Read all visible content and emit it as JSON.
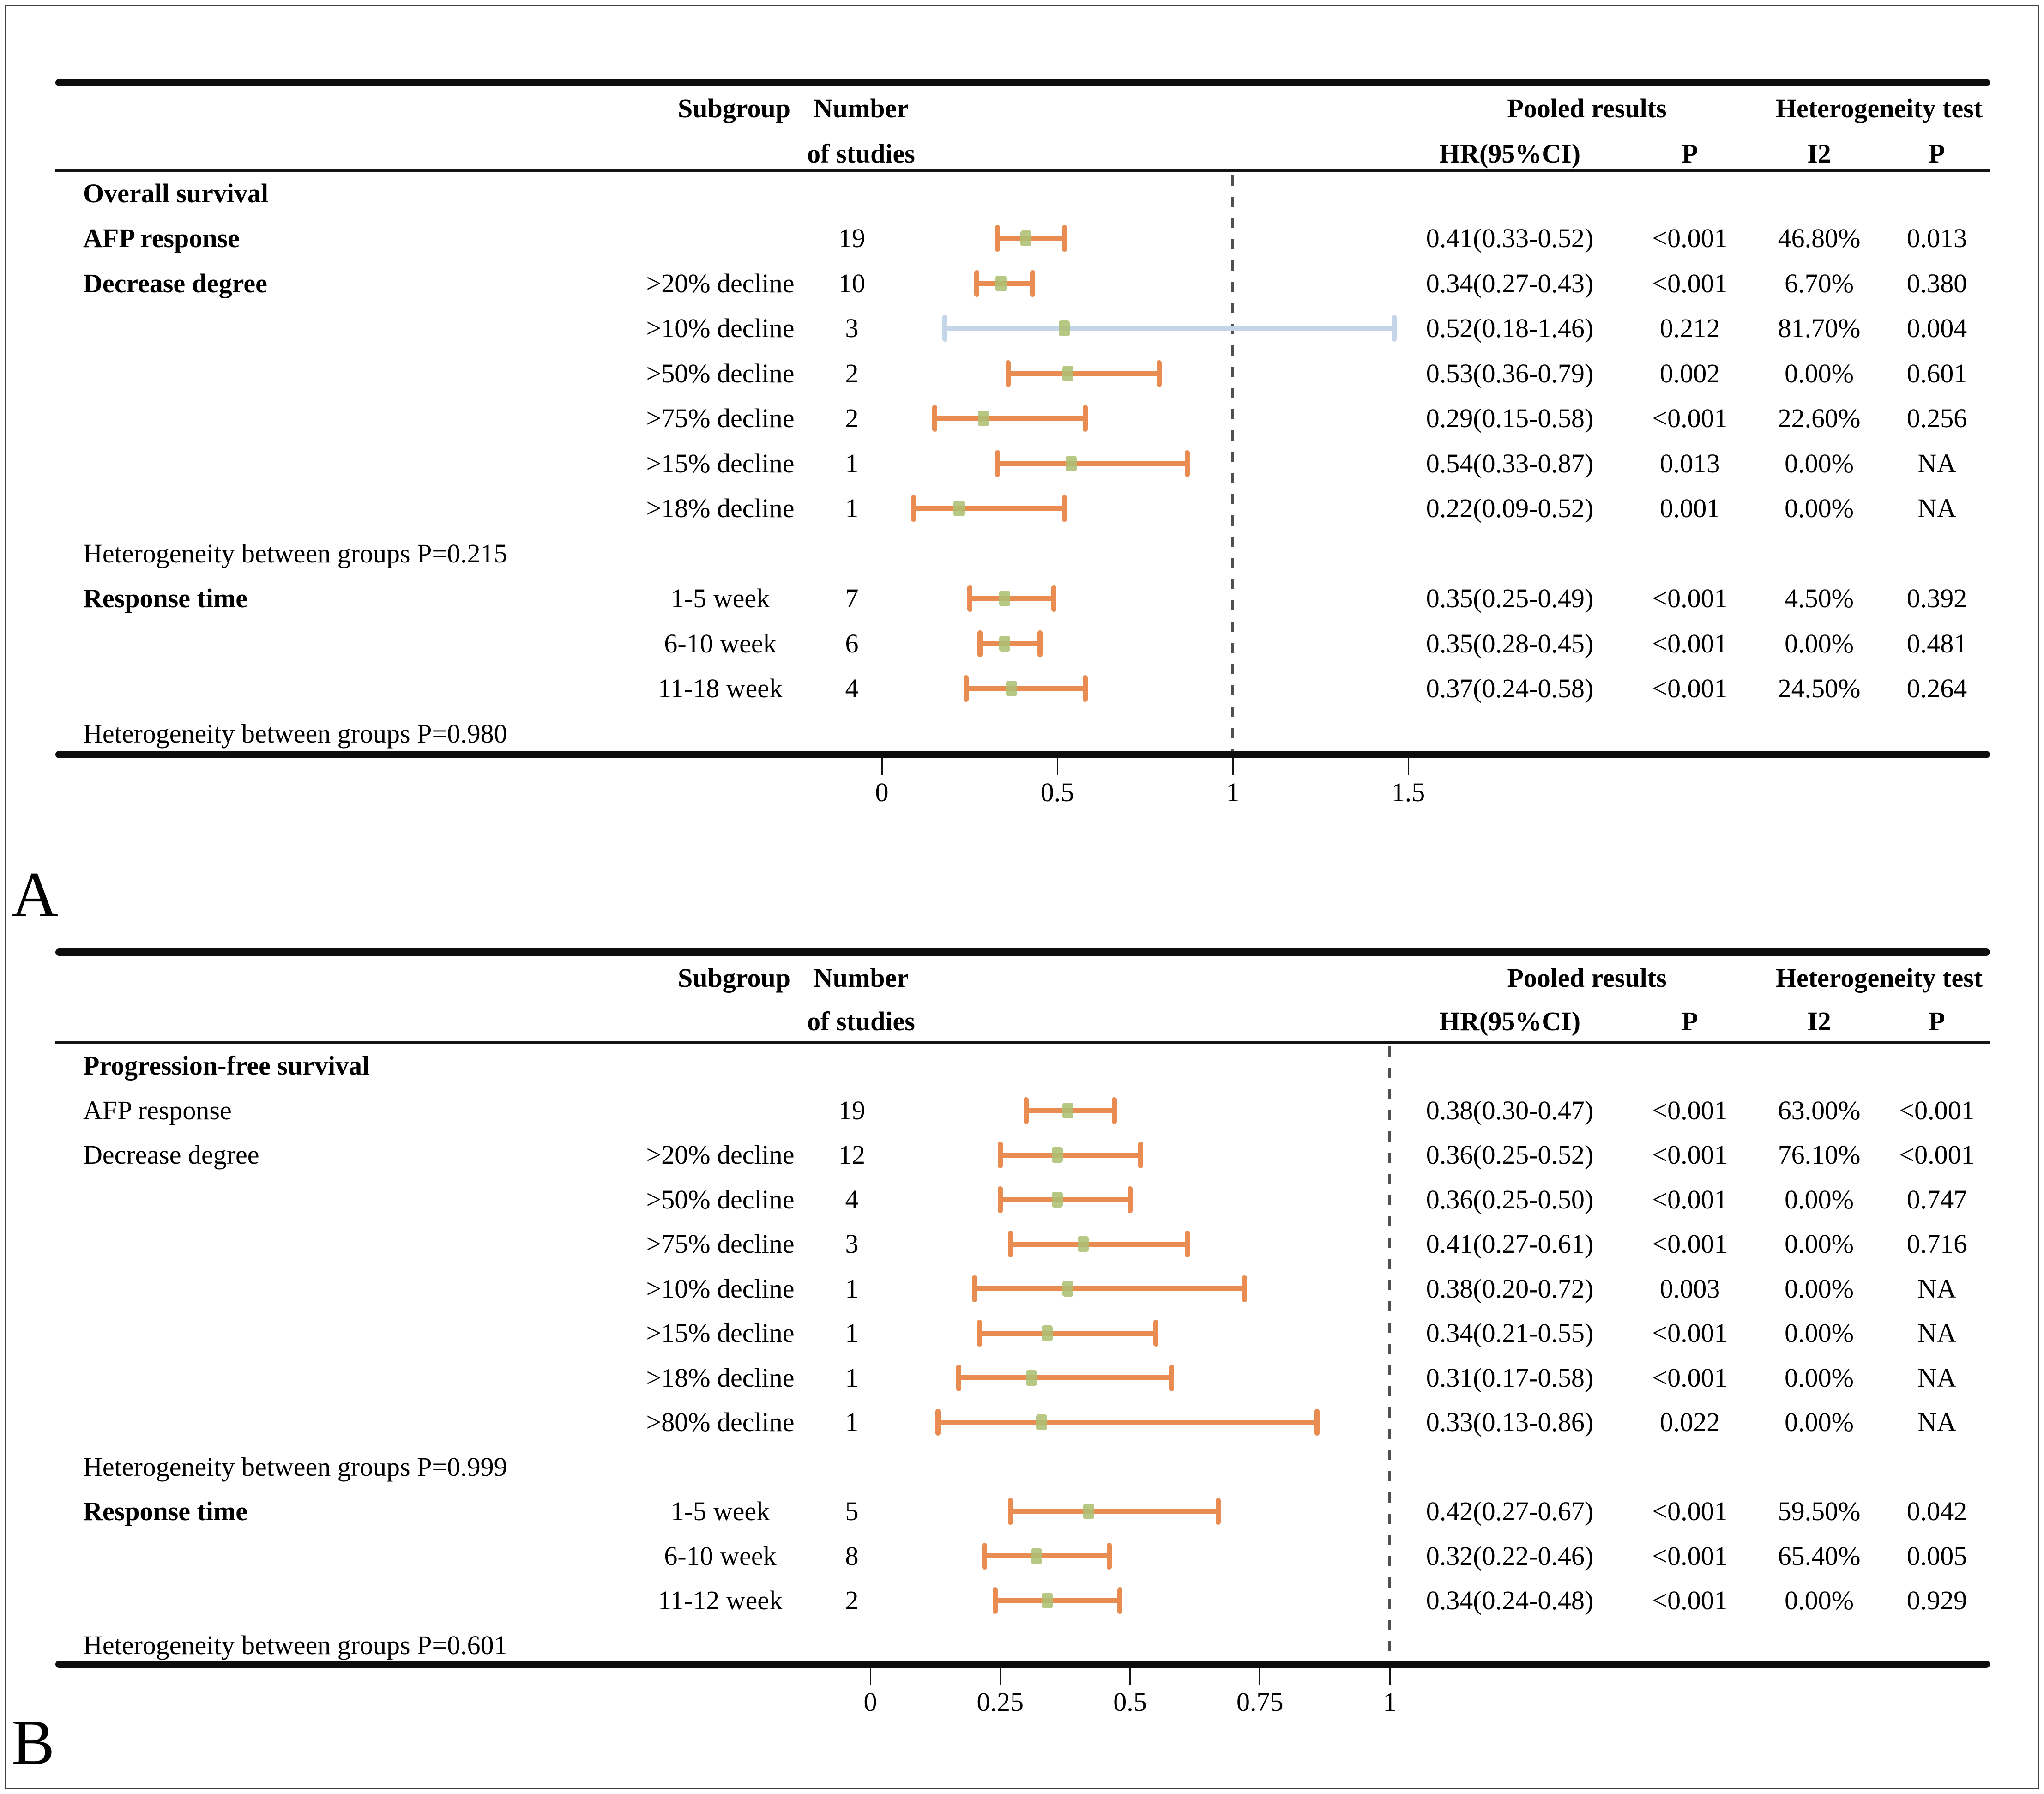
{
  "figure": {
    "panel_a_letter": "A",
    "panel_b_letter": "B",
    "colors": {
      "ci_orange": "#E88C52",
      "ci_blue": "#C5D5E8",
      "marker_green": "rgba(173,191,115,0.88)",
      "reference_dash": "#4f4f4f",
      "rule_black": "#0d0d0d"
    }
  },
  "chart_data": {
    "type": "forest",
    "panels": [
      {
        "label": "A",
        "group_title": "Overall survival",
        "columns": {
          "subgroup": "Subgroup",
          "number_line1": "Number",
          "number_line2": "of studies",
          "pooled": "Pooled results",
          "heterogeneity": "Heterogeneity test",
          "hr": "HR(95%CI)",
          "p_pooled": "P",
          "i2": "I2",
          "p_het": "P"
        },
        "axis": {
          "min": 0,
          "max": 1.5,
          "ticks": [
            "0",
            "0.5",
            "1",
            "1.5"
          ],
          "tick_values": [
            0,
            0.5,
            1,
            1.5
          ],
          "reference_value": 1
        },
        "rows": [
          {
            "type": "section",
            "label": "Overall survival",
            "bold": true
          },
          {
            "type": "data",
            "label": "AFP response",
            "bold": true,
            "subgroup": "",
            "n": "19",
            "hr": 0.41,
            "lo": 0.33,
            "hi": 0.52,
            "hr_text": "0.41(0.33-0.52)",
            "p": "<0.001",
            "i2": "46.80%",
            "p_het": "0.013",
            "ci_color": "orange"
          },
          {
            "type": "data",
            "label": "Decrease degree",
            "bold": true,
            "subgroup": ">20% decline",
            "n": "10",
            "hr": 0.34,
            "lo": 0.27,
            "hi": 0.43,
            "hr_text": "0.34(0.27-0.43)",
            "p": "<0.001",
            "i2": "6.70%",
            "p_het": "0.380",
            "ci_color": "orange"
          },
          {
            "type": "data",
            "subgroup": ">10% decline",
            "n": "3",
            "hr": 0.52,
            "lo": 0.18,
            "hi": 1.46,
            "hr_text": "0.52(0.18-1.46)",
            "p": "0.212",
            "i2": "81.70%",
            "p_het": "0.004",
            "ci_color": "blue"
          },
          {
            "type": "data",
            "subgroup": ">50% decline",
            "n": "2",
            "hr": 0.53,
            "lo": 0.36,
            "hi": 0.79,
            "hr_text": "0.53(0.36-0.79)",
            "p": "0.002",
            "i2": "0.00%",
            "p_het": "0.601",
            "ci_color": "orange"
          },
          {
            "type": "data",
            "subgroup": ">75% decline",
            "n": "2",
            "hr": 0.29,
            "lo": 0.15,
            "hi": 0.58,
            "hr_text": "0.29(0.15-0.58)",
            "p": "<0.001",
            "i2": "22.60%",
            "p_het": "0.256",
            "ci_color": "orange"
          },
          {
            "type": "data",
            "subgroup": ">15% decline",
            "n": "1",
            "hr": 0.54,
            "lo": 0.33,
            "hi": 0.87,
            "hr_text": "0.54(0.33-0.87)",
            "p": "0.013",
            "i2": "0.00%",
            "p_het": "NA",
            "ci_color": "orange"
          },
          {
            "type": "data",
            "subgroup": ">18% decline",
            "n": "1",
            "hr": 0.22,
            "lo": 0.09,
            "hi": 0.52,
            "hr_text": "0.22(0.09-0.52)",
            "p": "0.001",
            "i2": "0.00%",
            "p_het": "NA",
            "ci_color": "orange"
          },
          {
            "type": "note",
            "label": "Heterogeneity between groups P=0.215"
          },
          {
            "type": "data",
            "label": "Response time",
            "bold": true,
            "subgroup": "1-5 week",
            "n": "7",
            "hr": 0.35,
            "lo": 0.25,
            "hi": 0.49,
            "hr_text": "0.35(0.25-0.49)",
            "p": "<0.001",
            "i2": "4.50%",
            "p_het": "0.392",
            "ci_color": "orange"
          },
          {
            "type": "data",
            "subgroup": "6-10 week",
            "n": "6",
            "hr": 0.35,
            "lo": 0.28,
            "hi": 0.45,
            "hr_text": "0.35(0.28-0.45)",
            "p": "<0.001",
            "i2": "0.00%",
            "p_het": "0.481",
            "ci_color": "orange"
          },
          {
            "type": "data",
            "subgroup": "11-18 week",
            "n": "4",
            "hr": 0.37,
            "lo": 0.24,
            "hi": 0.58,
            "hr_text": "0.37(0.24-0.58)",
            "p": "<0.001",
            "i2": "24.50%",
            "p_het": "0.264",
            "ci_color": "orange"
          },
          {
            "type": "note",
            "label": "Heterogeneity between groups P=0.980"
          }
        ]
      },
      {
        "label": "B",
        "group_title": "Progression-free survival",
        "columns": {
          "subgroup": "Subgroup",
          "number_line1": "Number",
          "number_line2": "of studies",
          "pooled": "Pooled results",
          "heterogeneity": "Heterogeneity test",
          "hr": "HR(95%CI)",
          "p_pooled": "P",
          "i2": "I2",
          "p_het": "P"
        },
        "axis": {
          "min": 0,
          "max": 1,
          "ticks": [
            "0",
            "0.25",
            "0.5",
            "0.75",
            "1"
          ],
          "tick_values": [
            0,
            0.25,
            0.5,
            0.75,
            1
          ],
          "reference_value": 1
        },
        "rows": [
          {
            "type": "section",
            "label": "Progression-free survival",
            "bold": true
          },
          {
            "type": "data",
            "label": "AFP response",
            "bold": false,
            "subgroup": "",
            "n": "19",
            "hr": 0.38,
            "lo": 0.3,
            "hi": 0.47,
            "hr_text": "0.38(0.30-0.47)",
            "p": "<0.001",
            "i2": "63.00%",
            "p_het": "<0.001",
            "ci_color": "orange"
          },
          {
            "type": "data",
            "label": "Decrease degree",
            "bold": false,
            "subgroup": ">20% decline",
            "n": "12",
            "hr": 0.36,
            "lo": 0.25,
            "hi": 0.52,
            "hr_text": "0.36(0.25-0.52)",
            "p": "<0.001",
            "i2": "76.10%",
            "p_het": "<0.001",
            "ci_color": "orange"
          },
          {
            "type": "data",
            "subgroup": ">50% decline",
            "n": "4",
            "hr": 0.36,
            "lo": 0.25,
            "hi": 0.5,
            "hr_text": "0.36(0.25-0.50)",
            "p": "<0.001",
            "i2": "0.00%",
            "p_het": "0.747",
            "ci_color": "orange"
          },
          {
            "type": "data",
            "subgroup": ">75% decline",
            "n": "3",
            "hr": 0.41,
            "lo": 0.27,
            "hi": 0.61,
            "hr_text": "0.41(0.27-0.61)",
            "p": "<0.001",
            "i2": "0.00%",
            "p_het": "0.716",
            "ci_color": "orange"
          },
          {
            "type": "data",
            "subgroup": ">10% decline",
            "n": "1",
            "hr": 0.38,
            "lo": 0.2,
            "hi": 0.72,
            "hr_text": "0.38(0.20-0.72)",
            "p": "0.003",
            "i2": "0.00%",
            "p_het": "NA",
            "ci_color": "orange"
          },
          {
            "type": "data",
            "subgroup": ">15% decline",
            "n": "1",
            "hr": 0.34,
            "lo": 0.21,
            "hi": 0.55,
            "hr_text": "0.34(0.21-0.55)",
            "p": "<0.001",
            "i2": "0.00%",
            "p_het": "NA",
            "ci_color": "orange"
          },
          {
            "type": "data",
            "subgroup": ">18% decline",
            "n": "1",
            "hr": 0.31,
            "lo": 0.17,
            "hi": 0.58,
            "hr_text": "0.31(0.17-0.58)",
            "p": "<0.001",
            "i2": "0.00%",
            "p_het": "NA",
            "ci_color": "orange"
          },
          {
            "type": "data",
            "subgroup": ">80% decline",
            "n": "1",
            "hr": 0.33,
            "lo": 0.13,
            "hi": 0.86,
            "hr_text": "0.33(0.13-0.86)",
            "p": "0.022",
            "i2": "0.00%",
            "p_het": "NA",
            "ci_color": "orange"
          },
          {
            "type": "note",
            "label": "Heterogeneity between groups P=0.999"
          },
          {
            "type": "data",
            "label": "Response time",
            "bold": true,
            "subgroup": "1-5 week",
            "n": "5",
            "hr": 0.42,
            "lo": 0.27,
            "hi": 0.67,
            "hr_text": "0.42(0.27-0.67)",
            "p": "<0.001",
            "i2": "59.50%",
            "p_het": "0.042",
            "ci_color": "orange"
          },
          {
            "type": "data",
            "subgroup": "6-10 week",
            "n": "8",
            "hr": 0.32,
            "lo": 0.22,
            "hi": 0.46,
            "hr_text": "0.32(0.22-0.46)",
            "p": "<0.001",
            "i2": "65.40%",
            "p_het": "0.005",
            "ci_color": "orange"
          },
          {
            "type": "data",
            "subgroup": "11-12 week",
            "n": "2",
            "hr": 0.34,
            "lo": 0.24,
            "hi": 0.48,
            "hr_text": "0.34(0.24-0.48)",
            "p": "<0.001",
            "i2": "0.00%",
            "p_het": "0.929",
            "ci_color": "orange"
          }
        ],
        "footer_note": "Heterogeneity between groups P=0.601"
      }
    ]
  }
}
